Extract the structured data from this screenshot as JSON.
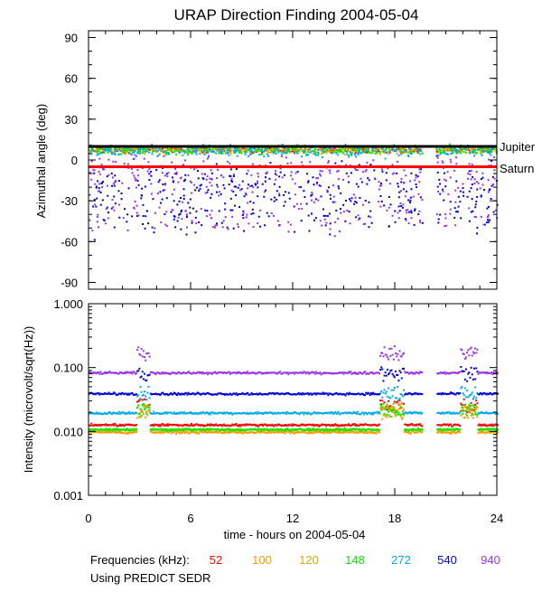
{
  "chart_data": [
    {
      "type": "scatter",
      "title": "URAP Direction Finding  2004-05-04",
      "xlabel": "",
      "ylabel": "Azimuthal angle (deg)",
      "xlim": [
        0,
        24
      ],
      "ylim": [
        -95,
        95
      ],
      "x_ticks": [
        0,
        6,
        12,
        18,
        24
      ],
      "y_ticks": [
        90,
        60,
        30,
        0,
        -30,
        -60,
        -90
      ],
      "reference_lines": [
        {
          "name": "Jupiter",
          "y": 10,
          "color": "#000000"
        },
        {
          "name": "Saturn",
          "y": -5,
          "color": "#ff0000"
        }
      ],
      "series": [
        {
          "name": "52",
          "color": "#ff0000",
          "center": 8,
          "spread": 3
        },
        {
          "name": "100",
          "color": "#ff9900",
          "center": 8,
          "spread": 4
        },
        {
          "name": "120",
          "color": "#c8b400",
          "center": 8,
          "spread": 4
        },
        {
          "name": "148",
          "color": "#00ee00",
          "center": 8,
          "spread": 5
        },
        {
          "name": "272",
          "color": "#00aaee",
          "center": 7,
          "spread": 6
        },
        {
          "name": "540",
          "color": "#0000dd",
          "center": -20,
          "spread": 25
        },
        {
          "name": "940",
          "color": "#9933ee",
          "center": -10,
          "spread": 22
        }
      ]
    },
    {
      "type": "scatter",
      "title": "",
      "xlabel": "time - hours on 2004-05-04",
      "ylabel": "Intensity (microvolt/sqrt(Hz))",
      "xlim": [
        0,
        24
      ],
      "ylim": [
        0.001,
        1.0
      ],
      "yscale": "log",
      "x_ticks": [
        0,
        6,
        12,
        18,
        24
      ],
      "y_ticks": [
        1.0,
        0.1,
        0.01,
        0.001
      ],
      "y_tick_labels": [
        "1.000",
        "0.100",
        "0.010",
        "0.001"
      ],
      "series": [
        {
          "name": "52",
          "color": "#ff0000",
          "baseline": 0.013
        },
        {
          "name": "100",
          "color": "#ff9900",
          "baseline": 0.01
        },
        {
          "name": "120",
          "color": "#c8b400",
          "baseline": 0.011
        },
        {
          "name": "148",
          "color": "#00ee00",
          "baseline": 0.011
        },
        {
          "name": "272",
          "color": "#00aaee",
          "baseline": 0.02
        },
        {
          "name": "540",
          "color": "#0000dd",
          "baseline": 0.04
        },
        {
          "name": "940",
          "color": "#9933ee",
          "baseline": 0.085
        }
      ]
    }
  ],
  "title": "URAP Direction Finding  2004-05-04",
  "xlabel": "time - hours on 2004-05-04",
  "top_ylabel": "Azimuthal angle (deg)",
  "bottom_ylabel": "Intensity (microvolt/sqrt(Hz))",
  "labels": {
    "jupiter": "Jupiter",
    "saturn": "Saturn"
  },
  "legend": {
    "prefix": "Frequencies (kHz):",
    "items": [
      {
        "label": "52",
        "color": "#ff0000"
      },
      {
        "label": "100",
        "color": "#ff9900"
      },
      {
        "label": "120",
        "color": "#c8b400"
      },
      {
        "label": "148",
        "color": "#00ee00"
      },
      {
        "label": "272",
        "color": "#00aaee"
      },
      {
        "label": "540",
        "color": "#0000dd"
      },
      {
        "label": "940",
        "color": "#9933ee"
      }
    ],
    "source": "Using PREDICT SEDR"
  }
}
